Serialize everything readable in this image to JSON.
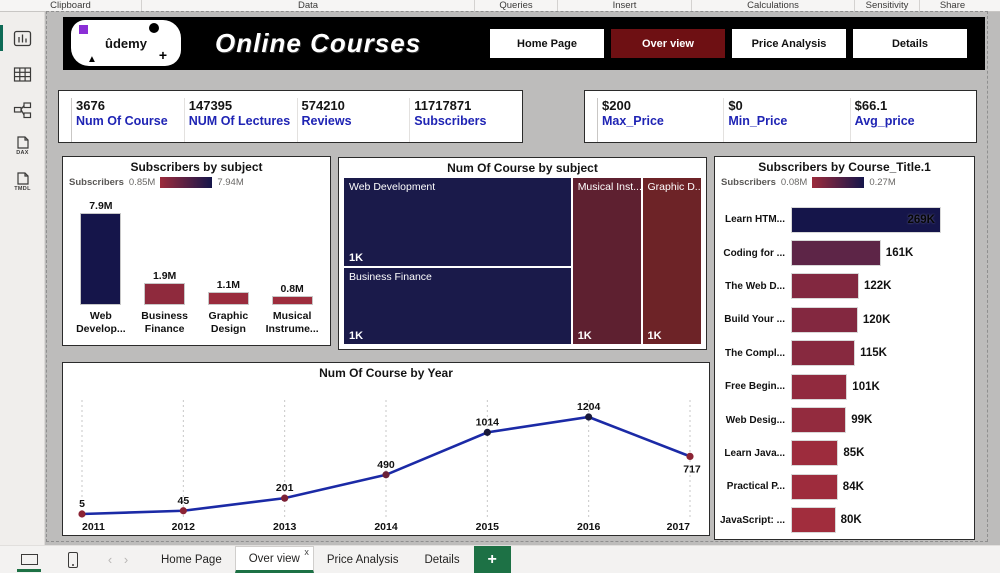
{
  "ribbon": {
    "groups": [
      "Clipboard",
      "Data",
      "Queries",
      "Insert",
      "Calculations",
      "Sensitivity",
      "Share"
    ]
  },
  "sidebar": {
    "items": [
      {
        "icon": "report-view-icon",
        "active": true
      },
      {
        "icon": "table-view-icon",
        "active": false
      },
      {
        "icon": "model-view-icon",
        "active": false
      },
      {
        "icon": "dax-query-view-icon",
        "active": false,
        "label": "DAX"
      },
      {
        "icon": "tmdl-view-icon",
        "active": false,
        "label": "TMDL"
      }
    ]
  },
  "header": {
    "logo": {
      "text": "ûdemy",
      "plus": "+",
      "triangle": "▲"
    },
    "title": "Online Courses",
    "nav": [
      {
        "label": "Home Page",
        "active": false
      },
      {
        "label": "Over view",
        "active": true
      },
      {
        "label": "Price Analysis",
        "active": false
      },
      {
        "label": "Details",
        "active": false
      }
    ],
    "active_color": "#6e1013"
  },
  "kpi_cards": {
    "left": [
      {
        "value": "3676",
        "label": "Num Of Course"
      },
      {
        "value": "147395",
        "label": "NUM Of Lectures"
      },
      {
        "value": "574210",
        "label": "Reviews"
      },
      {
        "value": "11717871",
        "label": "Subscribers"
      }
    ],
    "right": [
      {
        "value": "$200",
        "label": "Max_Price"
      },
      {
        "value": "$0",
        "label": "Min_Price"
      },
      {
        "value": "$66.1",
        "label": "Avg_price"
      }
    ],
    "label_color": "#1f24b4"
  },
  "chart_data": [
    {
      "type": "bar",
      "title": "Subscribers by subject",
      "legend": {
        "title": "Subscribers",
        "min": "0.85M",
        "max": "7.94M",
        "gradient": [
          "#9c2b3c",
          "#15154a"
        ]
      },
      "categories": [
        "Web Develop...",
        "Business Finance",
        "Graphic Design",
        "Musical Instrume..."
      ],
      "values": [
        7900000,
        1900000,
        1100000,
        800000
      ],
      "labels": [
        "7.9M",
        "1.9M",
        "1.1M",
        "0.8M"
      ],
      "colors": [
        "#15154a",
        "#8f2a3d",
        "#9a2c3d",
        "#9e2d3d"
      ],
      "ylim": [
        0,
        7940000
      ]
    },
    {
      "type": "treemap",
      "title": "Num Of Course by subject",
      "tiles": [
        {
          "name": "Web Development",
          "value": "1K",
          "color": "#1a1a4a"
        },
        {
          "name": "Business Finance",
          "value": "1K",
          "color": "#1a1a4a"
        },
        {
          "name": "Musical Inst...",
          "value": "1K",
          "color": "#5e2030"
        },
        {
          "name": "Graphic D...",
          "value": "1K",
          "color": "#6d2327"
        }
      ]
    },
    {
      "type": "bar-horizontal",
      "title": "Subscribers by Course_Title.1",
      "legend": {
        "title": "Subscribers",
        "min": "0.08M",
        "max": "0.27M",
        "gradient": [
          "#9c2b3c",
          "#15154a"
        ]
      },
      "categories": [
        "Learn HTM...",
        "Coding for ...",
        "The Web D...",
        "Build Your ...",
        "The Compl...",
        "Free Begin...",
        "Web Desig...",
        "Learn Java...",
        "Practical P...",
        "JavaScript: ..."
      ],
      "values": [
        269000,
        161000,
        122000,
        120000,
        115000,
        101000,
        99000,
        85000,
        84000,
        80000
      ],
      "labels": [
        "269K",
        "161K",
        "122K",
        "120K",
        "115K",
        "101K",
        "99K",
        "85K",
        "84K",
        "80K"
      ],
      "colors": [
        "#15154a",
        "#5d2547",
        "#822840",
        "#832840",
        "#87293f",
        "#912a3e",
        "#932b3e",
        "#9d2c3d",
        "#9e2c3d",
        "#a12d3d"
      ],
      "xlim": [
        0,
        270000
      ]
    },
    {
      "type": "line",
      "title": "Num Of Course by Year",
      "x": [
        "2011",
        "2012",
        "2013",
        "2014",
        "2015",
        "2016",
        "2017"
      ],
      "values": [
        5,
        45,
        201,
        490,
        1014,
        1204,
        717
      ],
      "line_color": "#1b2aa6",
      "marker_colors": [
        "#8b2334",
        "#8b2334",
        "#7c2136",
        "#6b2138",
        "#19193a",
        "#19193a",
        "#8b2334"
      ],
      "grid": "dashed-vertical",
      "ylim": [
        0,
        1300
      ]
    }
  ],
  "tabbar": {
    "nav_prev": "‹",
    "nav_next": "›",
    "tabs": [
      {
        "label": "Home Page",
        "active": false
      },
      {
        "label": "Over view",
        "active": true,
        "close_label": "x"
      },
      {
        "label": "Price Analysis",
        "active": false
      },
      {
        "label": "Details",
        "active": false
      }
    ],
    "new_page_label": "+",
    "accent_green": "#1d7145"
  }
}
